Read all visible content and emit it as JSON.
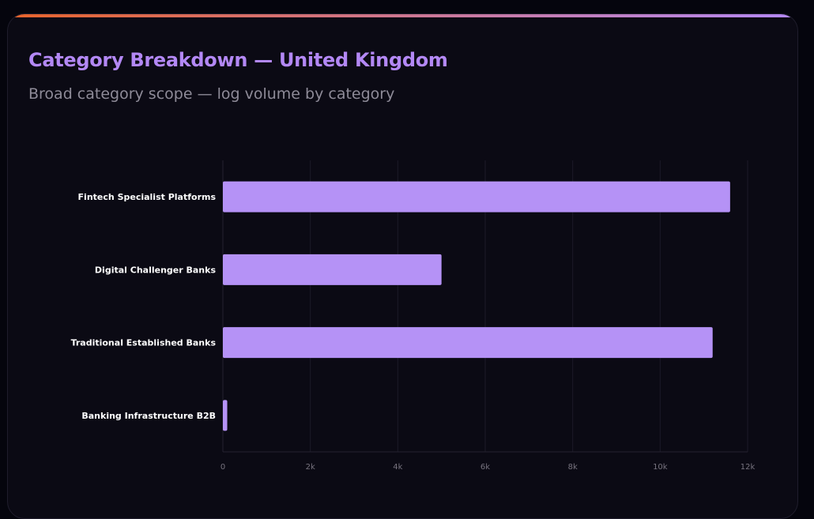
{
  "header": {
    "title": "Category Breakdown — United Kingdom",
    "subtitle": "Broad category scope — log volume by category"
  },
  "colors": {
    "page_background": "#05050d",
    "card_background": "#0b0a14",
    "title": "#b388f5",
    "subtitle": "#8e8b98",
    "bar": "#b592f6",
    "accent_gradient_start": "#e8642b",
    "accent_gradient_end": "#b388f5",
    "category_label": "#ffffff",
    "tick_label": "#77737f",
    "gridline": "#1c1a28"
  },
  "chart_data": {
    "type": "bar",
    "orientation": "horizontal",
    "categories": [
      "Fintech Specialist Platforms",
      "Digital Challenger Banks",
      "Traditional Established Banks",
      "Banking Infrastructure B2B"
    ],
    "values": [
      11600,
      5000,
      11200,
      100
    ],
    "xlim": [
      0,
      12000
    ],
    "xticks": [
      0,
      2000,
      4000,
      6000,
      8000,
      10000,
      12000
    ],
    "xtick_labels": [
      "0",
      "2k",
      "4k",
      "6k",
      "8k",
      "10k",
      "12k"
    ],
    "grid": true,
    "legend": "none"
  }
}
